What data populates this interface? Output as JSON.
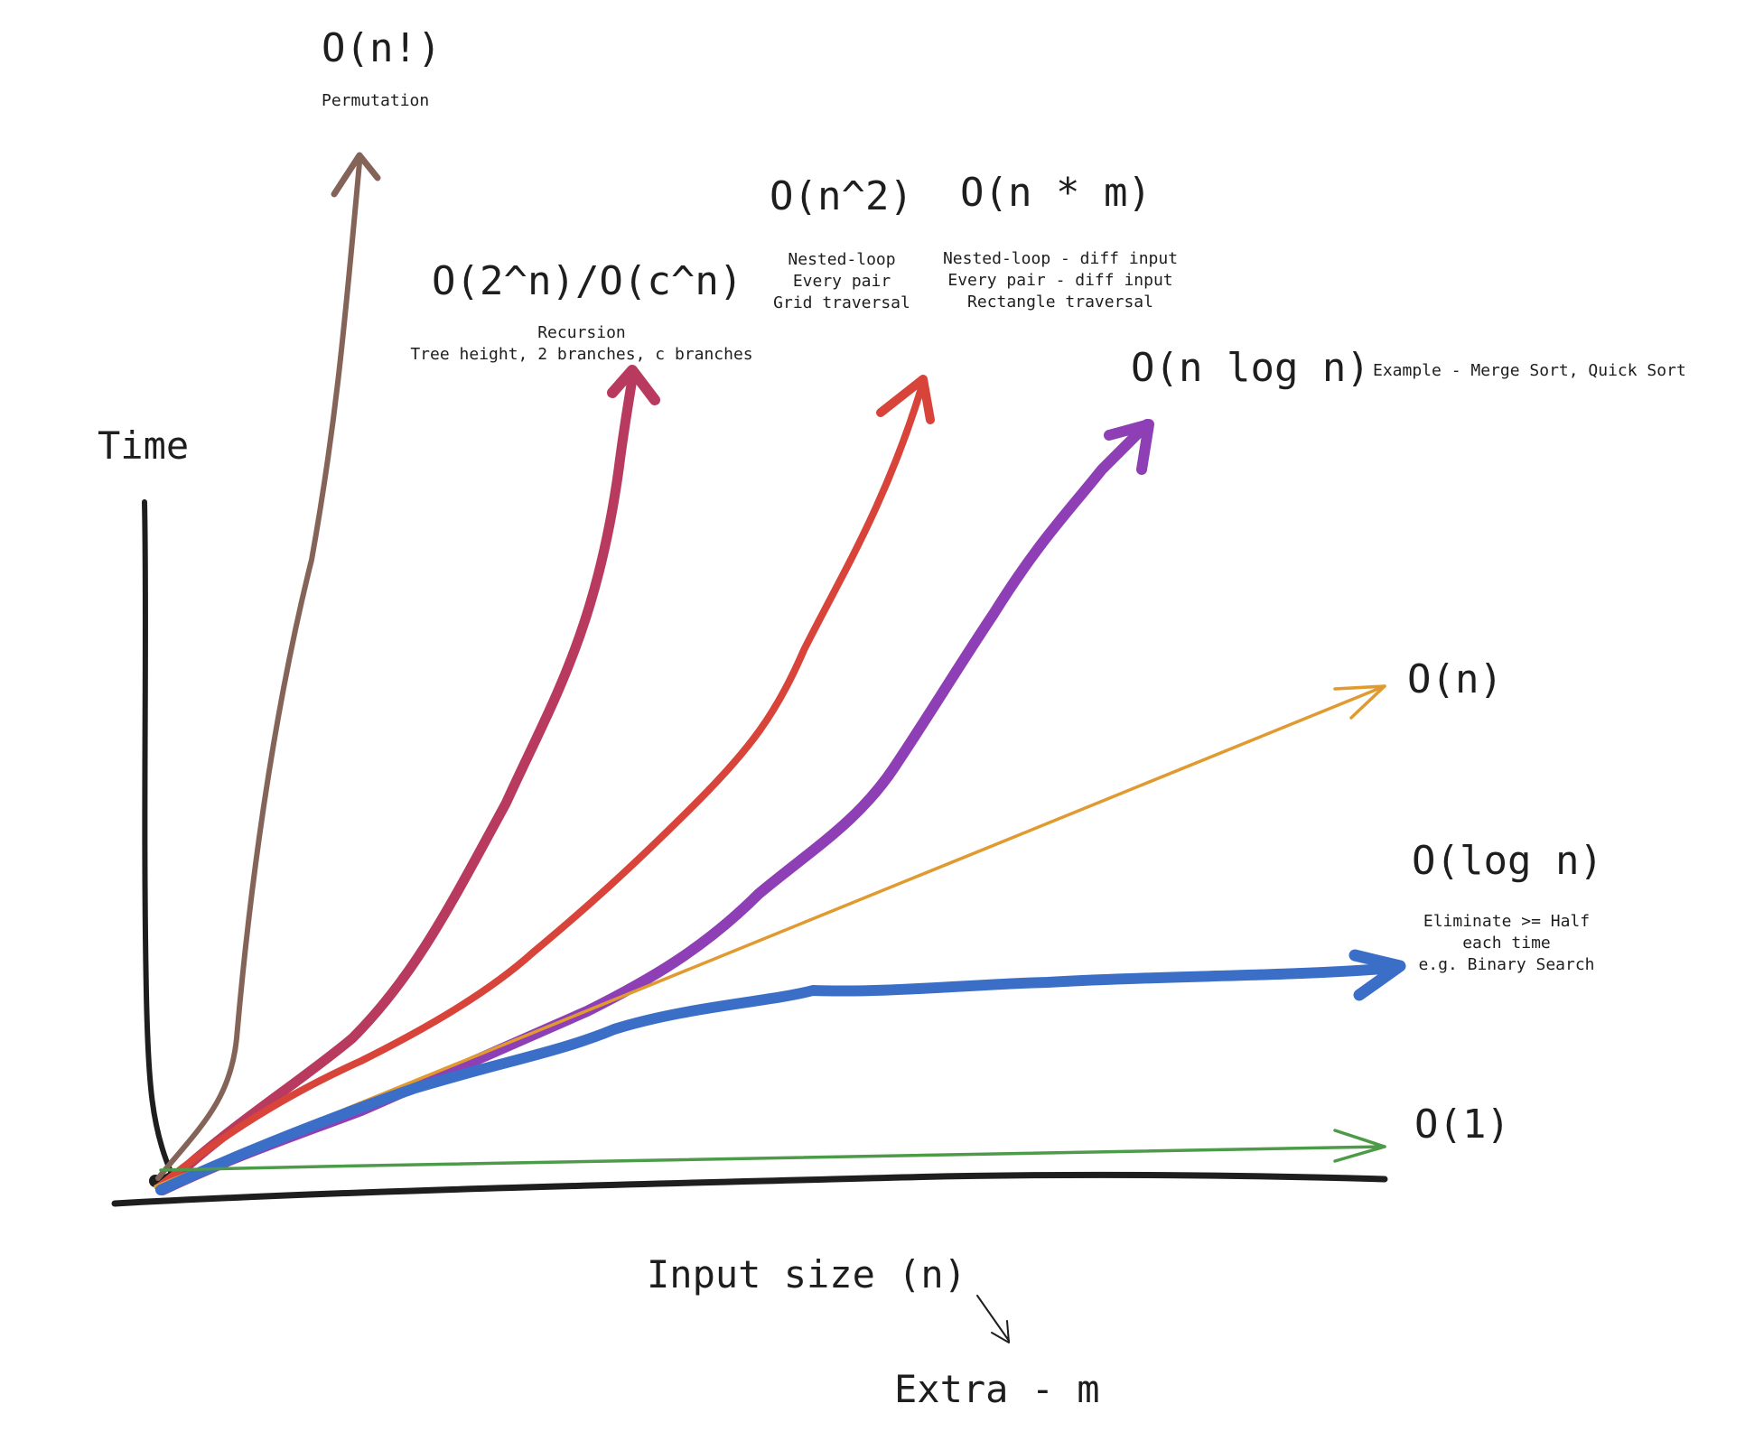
{
  "axes": {
    "y_label": "Time",
    "x_label": "Input size (n)",
    "x_extra_label": "Extra - m"
  },
  "complexities": [
    {
      "id": "factorial",
      "label": "O(n!)",
      "notes": [
        "Permutation"
      ],
      "color": "#846358"
    },
    {
      "id": "exponential",
      "label": "O(2^n)/O(c^n)",
      "notes": [
        "Recursion",
        "Tree height, 2 branches, c branches"
      ],
      "color": "#b83a5e"
    },
    {
      "id": "quadratic",
      "label": "O(n^2)",
      "notes": [
        "Nested-loop",
        "Every pair",
        "Grid traversal"
      ],
      "color": "#d9443a"
    },
    {
      "id": "n-times-m",
      "label": "O(n * m)",
      "notes": [
        "Nested-loop - diff input",
        "Every pair - diff input",
        "Rectangle traversal"
      ],
      "color": "#d9443a"
    },
    {
      "id": "n-log-n",
      "label": "O(n log n)",
      "notes": [
        "Example - Merge Sort, Quick Sort"
      ],
      "color": "#8f3fb5"
    },
    {
      "id": "linear",
      "label": "O(n)",
      "notes": [],
      "color": "#e09a30"
    },
    {
      "id": "logarithmic",
      "label": "O(log n)",
      "notes": [
        "Eliminate >= Half",
        "each time",
        "e.g. Binary Search"
      ],
      "color": "#3b6fc7"
    },
    {
      "id": "constant",
      "label": "O(1)",
      "notes": [],
      "color": "#4d9a48",
      "label_color": "#3b6fc7"
    }
  ]
}
